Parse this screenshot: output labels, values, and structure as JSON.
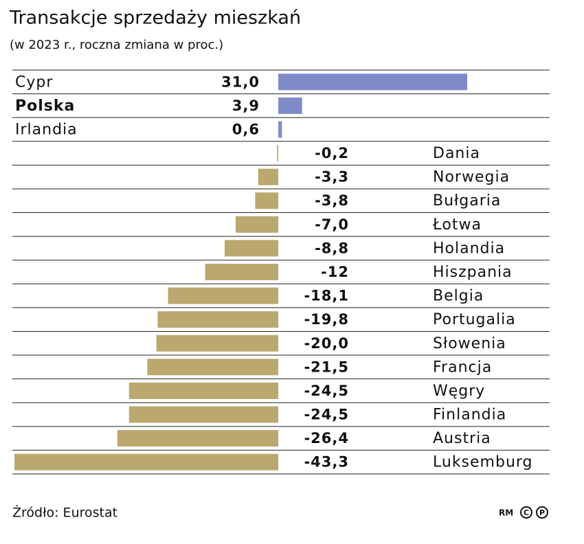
{
  "chart_data": {
    "type": "bar",
    "title": "Transakcje sprzedaży mieszkań",
    "subtitle": "(w 2023 r., roczna zmiana w proc.)",
    "categories": [
      "Cypr",
      "Polska",
      "Irlandia",
      "Dania",
      "Norwegia",
      "Bułgaria",
      "Łotwa",
      "Holandia",
      "Hiszpania",
      "Belgia",
      "Portugalia",
      "Słowenia",
      "Francja",
      "Węgry",
      "Finlandia",
      "Austria",
      "Luksemburg"
    ],
    "values": [
      31.0,
      3.9,
      0.6,
      -0.2,
      -3.3,
      -3.8,
      -7.0,
      -8.8,
      -12,
      -18.1,
      -19.8,
      -20.0,
      -21.5,
      -24.5,
      -24.5,
      -26.4,
      -43.3
    ],
    "value_labels": [
      "31,0",
      "3,9",
      "0,6",
      "-0,2",
      "-3,3",
      "-3,8",
      "-7,0",
      "-8,8",
      "-12",
      "-18,1",
      "-19,8",
      "-20,0",
      "-21,5",
      "-24,5",
      "-24,5",
      "-26,4",
      "-43,3"
    ],
    "positive_color": "#7f8bc9",
    "negative_color": "#bba86f",
    "highlight": "Polska",
    "source": "Źródło: Eurostat",
    "credit": "RM"
  }
}
